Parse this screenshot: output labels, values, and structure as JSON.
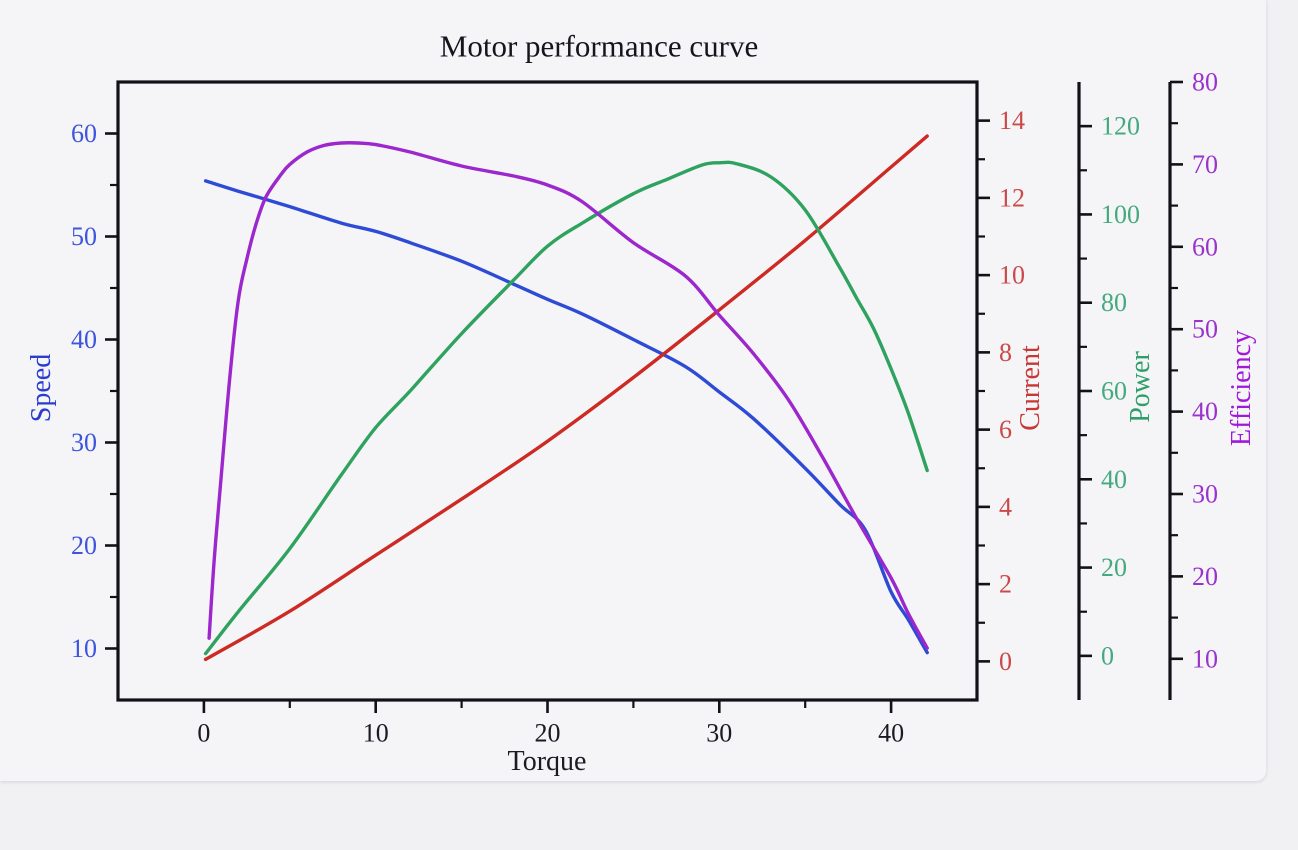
{
  "page": {
    "background": "#f1f1f4",
    "card_background": "#f5f5f7"
  },
  "chart_data": {
    "type": "line",
    "title": "Motor performance curve",
    "title_color": "#15151d",
    "grid": false,
    "legend": "none",
    "x_axis": {
      "label": "Torque",
      "label_color": "#1b1b24",
      "tick_color": "#1b1b24",
      "range": [
        -5,
        45
      ],
      "major_ticks": [
        0,
        10,
        20,
        30,
        40
      ],
      "minor_ticks": [
        5,
        15,
        25,
        35
      ]
    },
    "y_axes": [
      {
        "id": "speed",
        "label": "Speed",
        "side": "left",
        "label_color": "#2a3bd0",
        "tick_color": "#3d55dd",
        "range": [
          5,
          65
        ],
        "major_ticks": [
          10,
          20,
          30,
          40,
          50,
          60
        ],
        "minor_ticks": [
          15,
          25,
          35,
          45,
          55
        ]
      },
      {
        "id": "current",
        "label": "Current",
        "side": "right",
        "label_color": "#c63836",
        "tick_color": "#cb4a49",
        "range": [
          -1,
          15
        ],
        "major_ticks": [
          0,
          2,
          4,
          6,
          8,
          10,
          12,
          14
        ],
        "minor_ticks": [
          1,
          3,
          5,
          7,
          9,
          11,
          13
        ]
      },
      {
        "id": "power",
        "label": "Power",
        "side": "right",
        "label_color": "#2f9e68",
        "tick_color": "#45a97e",
        "range": [
          -10,
          130
        ],
        "major_ticks": [
          0,
          20,
          40,
          60,
          80,
          100,
          120
        ],
        "minor_ticks": [
          10,
          30,
          50,
          70,
          90,
          110
        ]
      },
      {
        "id": "efficiency",
        "label": "Efficiency",
        "side": "right",
        "label_color": "#a019d9",
        "tick_color": "#9933cc",
        "range": [
          5,
          80
        ],
        "major_ticks": [
          10,
          20,
          30,
          40,
          50,
          60,
          70,
          80
        ],
        "minor_ticks": [
          15,
          25,
          35,
          45,
          55,
          65,
          75
        ]
      }
    ],
    "series": [
      {
        "id": "speed",
        "name": "Speed",
        "axis": "speed",
        "color": "#2e4bd6",
        "x": [
          0.1,
          2,
          5,
          8,
          10,
          12,
          15,
          18,
          20,
          22,
          25,
          28,
          30,
          32,
          35,
          37,
          38.5,
          40,
          41,
          42.1
        ],
        "y": [
          55.4,
          54.4,
          52.9,
          51.3,
          50.5,
          49.4,
          47.6,
          45.4,
          43.9,
          42.5,
          40.0,
          37.4,
          34.9,
          32.3,
          27.5,
          24.0,
          21.5,
          15.5,
          12.8,
          9.6
        ]
      },
      {
        "id": "current",
        "name": "Current",
        "axis": "current",
        "color": "#cd2a23",
        "x": [
          0.1,
          5,
          10,
          15,
          20,
          25,
          30,
          35,
          40,
          42.1
        ],
        "y": [
          0.05,
          1.3,
          2.75,
          4.2,
          5.7,
          7.35,
          9.1,
          10.9,
          12.8,
          13.6
        ]
      },
      {
        "id": "power",
        "name": "Power",
        "axis": "power",
        "color": "#2ea25e",
        "x": [
          0.1,
          2,
          5,
          8,
          10,
          12,
          15,
          18,
          20,
          22,
          25,
          27,
          29,
          30,
          31,
          33,
          35,
          37,
          38,
          39,
          40,
          41,
          42.1
        ],
        "y": [
          0.5,
          10,
          24.3,
          41,
          51.7,
          60,
          73,
          85,
          92.8,
          98,
          104.7,
          108,
          111.2,
          111.7,
          111.5,
          108.5,
          101,
          88,
          81,
          74,
          65,
          55,
          42
        ]
      },
      {
        "id": "efficiency",
        "name": "Efficiency",
        "axis": "efficiency",
        "color": "#9c27cc",
        "x": [
          0.3,
          0.6,
          1,
          1.5,
          2,
          2.5,
          3,
          3.6,
          4.5,
          5,
          6,
          7,
          8,
          9,
          10,
          12,
          15,
          18,
          20,
          22,
          25,
          28,
          30,
          32,
          34,
          36,
          38,
          40,
          41,
          42.1
        ],
        "y": [
          12.5,
          22,
          32,
          44,
          53.5,
          58.5,
          62.5,
          66,
          68.8,
          70,
          71.5,
          72.3,
          72.6,
          72.6,
          72.4,
          71.5,
          69.8,
          68.6,
          67.5,
          65.5,
          60.5,
          56.5,
          51.7,
          47,
          41.5,
          34.5,
          27,
          19.8,
          15.5,
          11.3
        ]
      }
    ]
  }
}
